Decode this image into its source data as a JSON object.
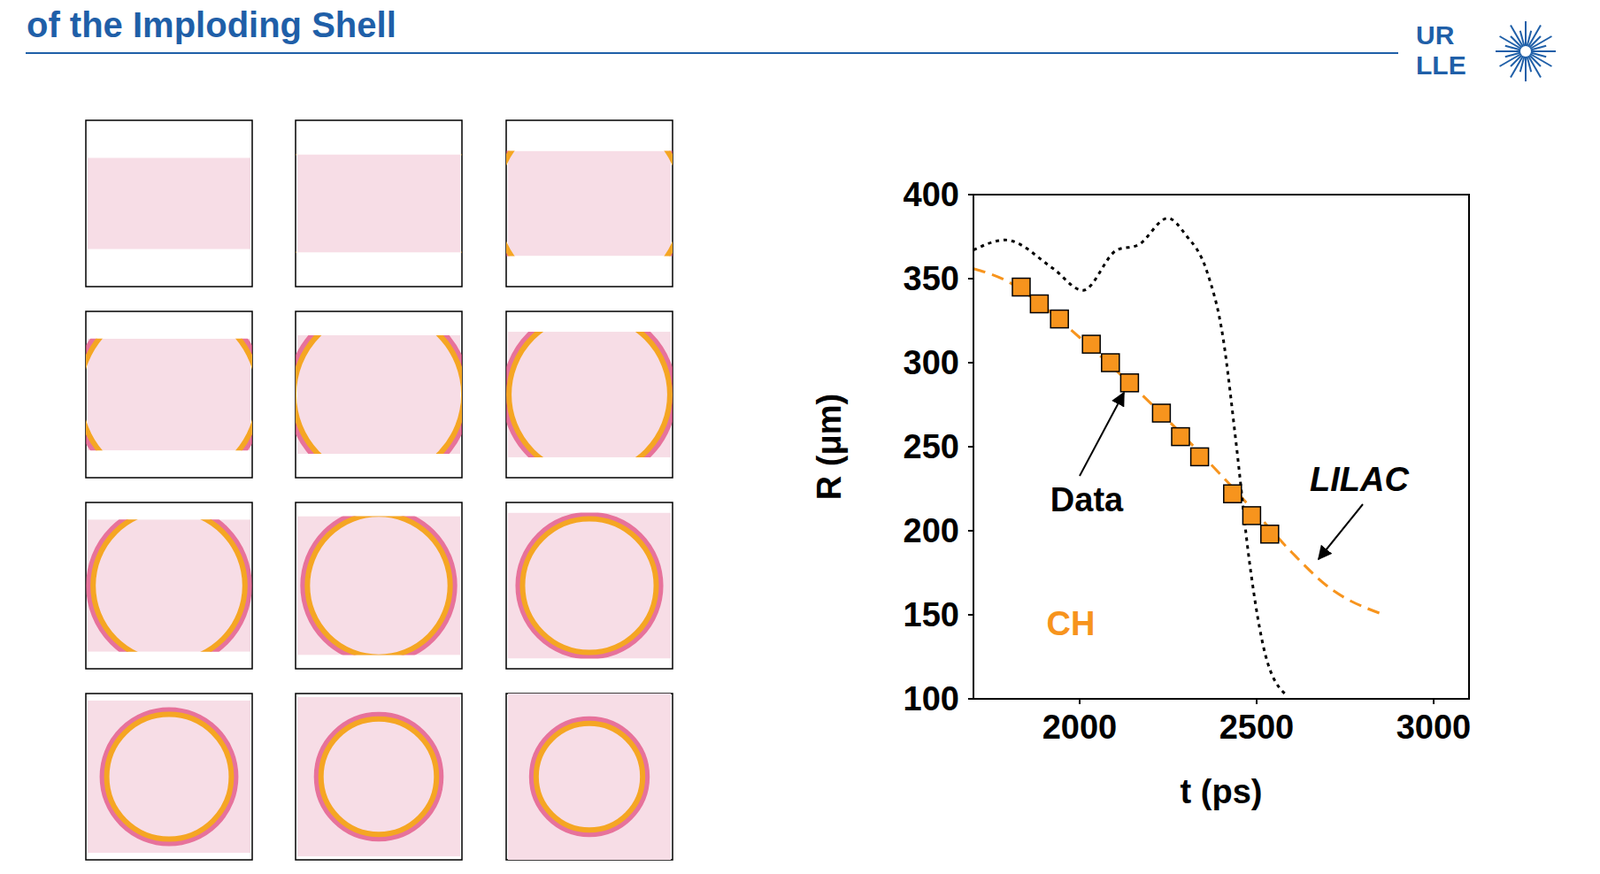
{
  "title": "of the Imploding Shell",
  "logo": [
    "UR",
    "LLE"
  ],
  "chart_data": {
    "type": "scatter",
    "x_label": "t (ps)",
    "y_label": "R (μm)",
    "xlim": [
      1700,
      3100
    ],
    "xticks": [
      2000,
      2500,
      3000
    ],
    "ylim": [
      100,
      400
    ],
    "yticks": [
      100,
      150,
      200,
      250,
      300,
      350,
      400
    ],
    "annotations": [
      "CH"
    ],
    "series": [
      {
        "name": "Data",
        "type": "scatter",
        "marker": "square",
        "color": "#f7941d",
        "x": [
          1835,
          1886,
          1943,
          2033,
          2087,
          2141,
          2231,
          2285,
          2339,
          2432,
          2486,
          2537
        ],
        "values": [
          345,
          335,
          326,
          311,
          300,
          288,
          270,
          256,
          244,
          222,
          209,
          198
        ]
      },
      {
        "name": "LILAC",
        "type": "line",
        "line_style": "dashed",
        "color": "#f7941d",
        "x": [
          1700,
          1800,
          1900,
          2000,
          2100,
          2200,
          2300,
          2400,
          2500,
          2600,
          2700,
          2860
        ],
        "values": [
          356,
          348,
          333,
          315,
          296,
          276,
          255,
          233,
          210,
          187,
          167,
          150
        ]
      },
      {
        "type": "line",
        "line_style": "dotted",
        "color": "#000000",
        "x": [
          1700,
          1790,
          1925,
          2009,
          2105,
          2165,
          2249,
          2300,
          2360,
          2405,
          2441,
          2480,
          2525,
          2585
        ],
        "values": [
          367,
          373,
          356,
          343,
          367,
          370,
          386,
          376,
          354,
          315,
          254,
          181,
          126,
          102
        ]
      }
    ]
  }
}
